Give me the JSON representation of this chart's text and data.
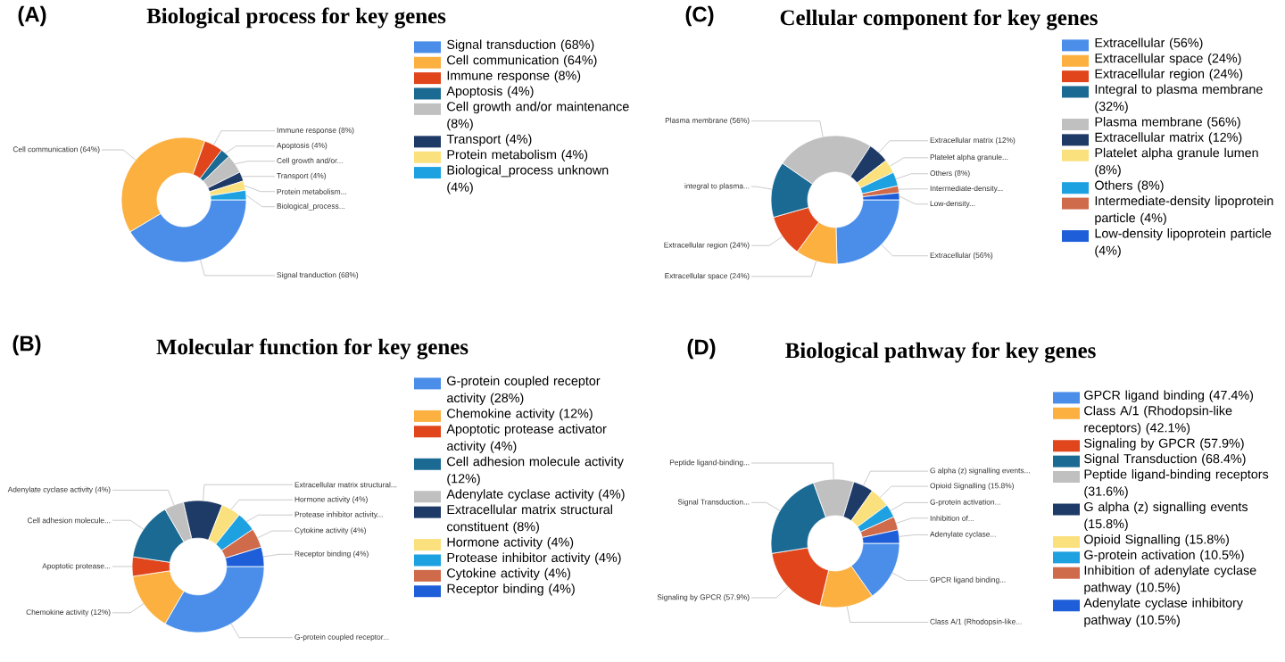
{
  "chart_data": [
    {
      "type": "donut",
      "title": "Biological process for key genes",
      "annotations": [
        "(A)"
      ],
      "legend": "right",
      "categories": [
        "Signal transduction (68%)",
        "Cell communication (64%)",
        "Immune response (8%)",
        "Apoptosis (4%)",
        "Cell growth and/or maintenance (8%)",
        "Transport (4%)",
        "Protein metabolism (4%)",
        "Biological_process unknown (4%)"
      ],
      "values": [
        68,
        64,
        8,
        4,
        8,
        4,
        4,
        4
      ],
      "colors": [
        "#4a8eea",
        "#fbb040",
        "#e0451c",
        "#1b6a93",
        "#c0c0c0",
        "#1e3a66",
        "#fbe17d",
        "#1da1e0"
      ],
      "value_labels": [
        "Signal tranduction (68%)",
        "Cell communication (64%)",
        "Immune response (8%)",
        "Apoptosis (4%)",
        "Cell growth and/or...",
        "Transport (4%)",
        "Protein metabolism...",
        "Biological_process..."
      ]
    },
    {
      "type": "donut",
      "title": "Cellular component for key genes",
      "annotations": [
        "(C)"
      ],
      "legend": "right",
      "categories": [
        "Extracellular (56%)",
        "Extracellular space (24%)",
        "Extracellular region (24%)",
        "Integral to plasma membrane (32%)",
        "Plasma membrane (56%)",
        "Extracellular matrix (12%)",
        "Platelet alpha granule lumen (8%)",
        "Others (8%)",
        "Intermediate-density lipoprotein particle (4%)",
        "Low-density lipoprotein particle (4%)"
      ],
      "values": [
        56,
        24,
        24,
        32,
        56,
        12,
        8,
        8,
        4,
        4
      ],
      "colors": [
        "#4a8eea",
        "#fbb040",
        "#e0451c",
        "#1b6a93",
        "#c0c0c0",
        "#1e3a66",
        "#fbe17d",
        "#1da1e0",
        "#cf6a4a",
        "#1e5fd9"
      ],
      "value_labels": [
        "Extracellular (56%)",
        "Extracellular space (24%)",
        "Extracellular region (24%)",
        "integral to plasma...",
        "Plasma membrane (56%)",
        "Extracellular matrix (12%)",
        "Platelet alpha granule...",
        "Others (8%)",
        "Intermediate-density...",
        "Low-density..."
      ]
    },
    {
      "type": "donut",
      "title": "Molecular function for key genes",
      "annotations": [
        "(B)"
      ],
      "legend": "right",
      "categories": [
        "G-protein coupled receptor activity (28%)",
        "Chemokine activity (12%)",
        "Apoptotic protease activator activity (4%)",
        "Cell adhesion molecule activity (12%)",
        "Adenylate cyclase activity (4%)",
        "Extracellular matrix structural constituent (8%)",
        "Hormone activity (4%)",
        "Protease inhibitor activity (4%)",
        "Cytokine activity (4%)",
        "Receptor binding (4%)"
      ],
      "values": [
        28,
        12,
        4,
        12,
        4,
        8,
        4,
        4,
        4,
        4
      ],
      "colors": [
        "#4a8eea",
        "#fbb040",
        "#e0451c",
        "#1b6a93",
        "#c0c0c0",
        "#1e3a66",
        "#fbe17d",
        "#1da1e0",
        "#cf6a4a",
        "#1e5fd9"
      ],
      "value_labels": [
        "G-protein coupled receptor...",
        "Chemokine activity (12%)",
        "Apoptotic protease...",
        "Cell adhesion molecule...",
        "Adenylate cyclase activity (4%)",
        "Extracellular matrix structural...",
        "Hormone activity (4%)",
        "Protease inhibitor activity...",
        "Cytokine activity (4%)",
        "Receptor binding (4%)"
      ]
    },
    {
      "type": "donut",
      "title": "Biological pathway for key genes",
      "annotations": [
        "(D)"
      ],
      "legend": "right",
      "categories": [
        "GPCR ligand binding (47.4%)",
        "Class A/1 (Rhodopsin-like receptors) (42.1%)",
        "Signaling by GPCR (57.9%)",
        "Signal Transduction (68.4%)",
        "Peptide ligand-binding receptors (31.6%)",
        "G alpha (z) signalling events (15.8%)",
        "Opioid Signalling (15.8%)",
        "G-protein activation (10.5%)",
        "Inhibition of adenylate cyclase pathway (10.5%)",
        "Adenylate cyclase inhibitory pathway (10.5%)"
      ],
      "values": [
        47.4,
        42.1,
        57.9,
        68.4,
        31.6,
        15.8,
        15.8,
        10.5,
        10.5,
        10.5
      ],
      "colors": [
        "#4a8eea",
        "#fbb040",
        "#e0451c",
        "#1b6a93",
        "#c0c0c0",
        "#1e3a66",
        "#fbe17d",
        "#1da1e0",
        "#cf6a4a",
        "#1e5fd9"
      ],
      "value_labels": [
        "GPCR ligand binding...",
        "Class A/1 (Rhodopsin-like...",
        "Signaling by GPCR (57.9%)",
        "Signal Transduction...",
        "Peptide ligand-binding...",
        "G alpha (z) signalling events...",
        "Opioid Signalling (15.8%)",
        "G-protein activation...",
        "Inhibition of...",
        "Adenylate cyclase..."
      ]
    }
  ]
}
